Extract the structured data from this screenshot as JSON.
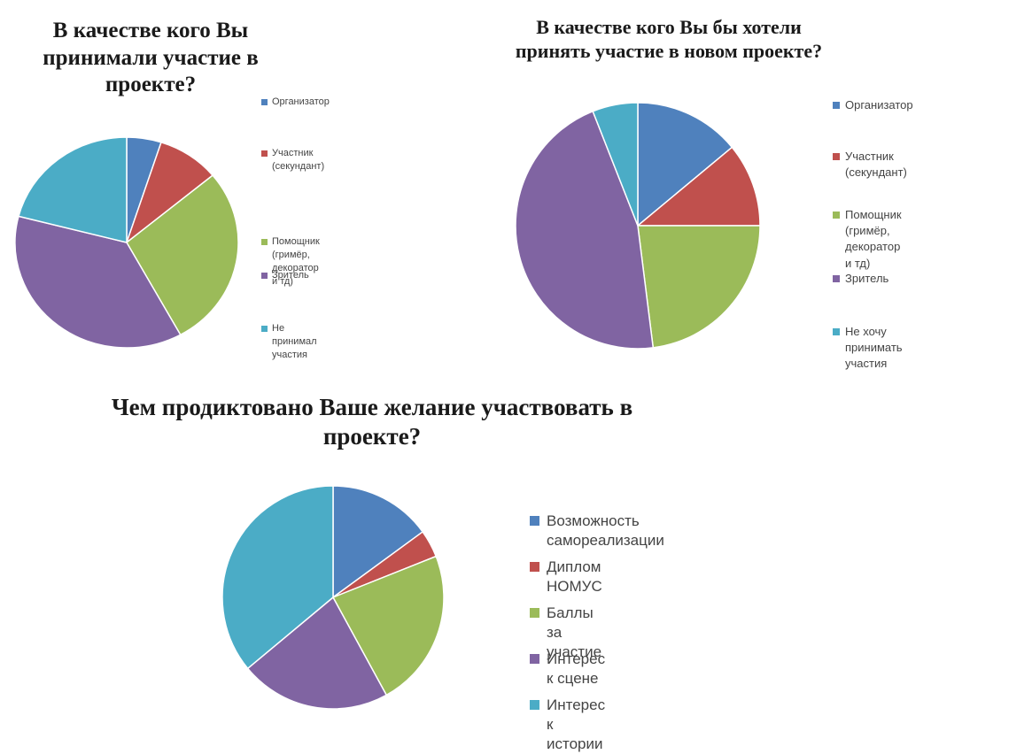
{
  "chart_data": [
    {
      "type": "pie",
      "title": "В качестве кого Вы\nпринимали участие в\nпроекте?",
      "categories": [
        "Организатор",
        "Участник\n(секундант)",
        "Помощник (гримёр,\nдекоратор и тд)",
        "Зритель",
        "Не принимал\nучастия"
      ],
      "values": [
        5,
        9,
        28,
        37,
        21
      ],
      "colors": [
        "#4f81bd",
        "#c0504d",
        "#9bbb59",
        "#8064a2",
        "#4bacc6"
      ],
      "legend_position": "right"
    },
    {
      "type": "pie",
      "title": "В качестве кого Вы бы хотели\nпринять участие в новом проекте?",
      "categories": [
        "Организатор",
        "Участник (секундант)",
        "Помощник (гримёр,\nдекоратор и тд)",
        "Зритель",
        "Не хочу принимать\nучастия"
      ],
      "values": [
        14,
        11,
        23,
        46,
        6
      ],
      "colors": [
        "#4f81bd",
        "#c0504d",
        "#9bbb59",
        "#8064a2",
        "#4bacc6"
      ],
      "legend_position": "right"
    },
    {
      "type": "pie",
      "title": "Чем продиктовано Ваше желание участвовать в\nпроекте?",
      "categories": [
        "Возможность самореализации",
        "Диплом НОМУС",
        "Баллы за участие",
        "Интерес к сцене",
        "Интерес к истории"
      ],
      "values": [
        15,
        4,
        23,
        22,
        36
      ],
      "colors": [
        "#4f81bd",
        "#c0504d",
        "#9bbb59",
        "#8064a2",
        "#4bacc6"
      ],
      "legend_position": "right"
    }
  ]
}
